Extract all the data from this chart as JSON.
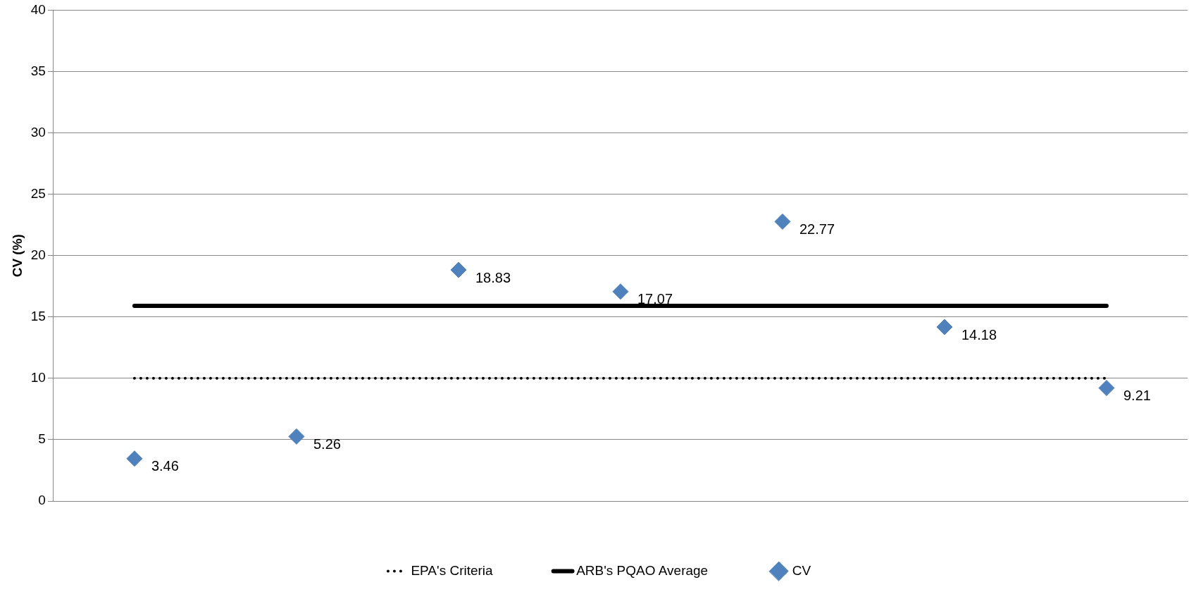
{
  "chart_data": {
    "type": "scatter",
    "ylabel": "CV (%)",
    "categories": [
      null,
      null,
      null,
      null,
      null,
      null,
      null
    ],
    "series": [
      {
        "name": "EPA's Criteria",
        "type": "line",
        "line_style": "dotted",
        "marker": "none",
        "color": "#000000",
        "values": [
          10,
          10,
          10,
          10,
          10,
          10,
          10
        ]
      },
      {
        "name": "ARB's PQAO Average",
        "type": "line",
        "line_style": "solid",
        "marker": "none",
        "color": "#000000",
        "values": [
          15.9,
          15.9,
          15.9,
          15.9,
          15.9,
          15.9,
          15.9
        ]
      },
      {
        "name": "CV",
        "marker": "diamond",
        "color": "#4f81bd",
        "values": [
          3.46,
          5.26,
          18.83,
          17.07,
          22.77,
          14.18,
          9.21
        ],
        "value_labels": [
          "3.46",
          "5.26",
          "18.83",
          "17.07",
          "22.77",
          "14.18",
          "9.21"
        ]
      }
    ],
    "ylim": [
      0,
      40
    ],
    "yticks": [
      0,
      5,
      10,
      15,
      20,
      25,
      30,
      35,
      40
    ],
    "grid": "y",
    "legend": "bottom",
    "tick_labels": "y"
  }
}
